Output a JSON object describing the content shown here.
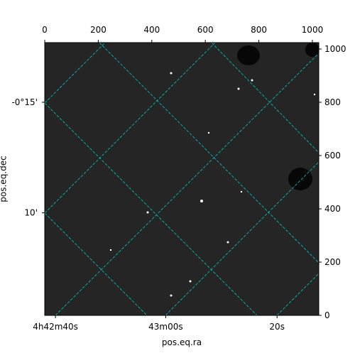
{
  "chart_data": {
    "type": "image",
    "xlabel": "pos.eq.ra",
    "ylabel": "pos.eq.dec",
    "xlim": [
      0,
      1024
    ],
    "ylim": [
      0,
      1024
    ],
    "xticks": [
      0,
      200,
      400,
      600,
      800,
      1000
    ],
    "yticks": [
      0,
      200,
      400,
      600,
      800,
      1000
    ],
    "ra_ticks": [
      {
        "value": 40,
        "label": "4h42m40s"
      },
      {
        "value": 452,
        "label": "43m00s"
      },
      {
        "value": 868,
        "label": "20s"
      }
    ],
    "dec_ticks": [
      {
        "value": 800,
        "label": "-0°15'"
      },
      {
        "value": 385,
        "label": "10'"
      }
    ],
    "grid_color": "#00c8c8"
  }
}
